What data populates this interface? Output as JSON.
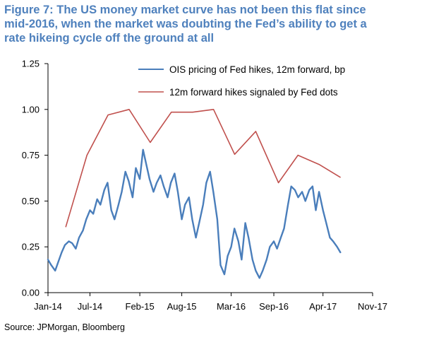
{
  "title_lines": [
    "Figure 7: The US money market curve has not been this flat since",
    "mid-2016, when the market was doubting the Fed’s ability to get a",
    "rate hikeing cycle off the ground at all"
  ],
  "source": "Source: JPMorgan, Bloomberg",
  "colors": {
    "title": "#4f81bd",
    "ois": "#4a7ebb",
    "dots": "#c0504d",
    "axis": "#000000"
  },
  "chart_data": {
    "type": "line",
    "title": "",
    "xlabel": "",
    "ylabel": "",
    "ylim": [
      0,
      1.25
    ],
    "yticks": [
      "0.00",
      "0.25",
      "0.50",
      "0.75",
      "1.00",
      "1.25"
    ],
    "xlim": [
      "2014-01-01",
      "2017-11-01"
    ],
    "xticks": [
      {
        "date": "2014-01-01",
        "label": "Jan-14"
      },
      {
        "date": "2014-07-01",
        "label": "Jul-14"
      },
      {
        "date": "2015-02-01",
        "label": "Feb-15"
      },
      {
        "date": "2015-08-01",
        "label": "Aug-15"
      },
      {
        "date": "2016-03-01",
        "label": "Mar-16"
      },
      {
        "date": "2016-09-01",
        "label": "Sep-16"
      },
      {
        "date": "2017-04-01",
        "label": "Apr-17"
      },
      {
        "date": "2017-11-01",
        "label": "Nov-17"
      }
    ],
    "grid": false,
    "legend_position": "top-right",
    "series": [
      {
        "name": "OIS pricing of Fed hikes, 12m forward, bp",
        "color": "#4a7ebb",
        "x": [
          "2014-01-01",
          "2014-01-15",
          "2014-02-01",
          "2014-02-15",
          "2014-03-01",
          "2014-03-15",
          "2014-04-01",
          "2014-04-15",
          "2014-05-01",
          "2014-05-15",
          "2014-06-01",
          "2014-06-15",
          "2014-07-01",
          "2014-07-15",
          "2014-08-01",
          "2014-08-15",
          "2014-09-01",
          "2014-09-15",
          "2014-10-01",
          "2014-10-15",
          "2014-11-01",
          "2014-11-15",
          "2014-12-01",
          "2014-12-15",
          "2015-01-01",
          "2015-01-15",
          "2015-02-01",
          "2015-02-15",
          "2015-03-01",
          "2015-03-15",
          "2015-04-01",
          "2015-04-15",
          "2015-05-01",
          "2015-05-15",
          "2015-06-01",
          "2015-06-15",
          "2015-07-01",
          "2015-07-15",
          "2015-08-01",
          "2015-08-15",
          "2015-09-01",
          "2015-09-15",
          "2015-10-01",
          "2015-10-15",
          "2015-11-01",
          "2015-11-15",
          "2015-12-01",
          "2015-12-15",
          "2016-01-01",
          "2016-01-15",
          "2016-02-01",
          "2016-02-15",
          "2016-03-01",
          "2016-03-15",
          "2016-04-01",
          "2016-04-15",
          "2016-05-01",
          "2016-05-15",
          "2016-06-01",
          "2016-06-15",
          "2016-07-01",
          "2016-07-15",
          "2016-08-01",
          "2016-08-15",
          "2016-09-01",
          "2016-09-15",
          "2016-10-01",
          "2016-10-15",
          "2016-11-01",
          "2016-11-15",
          "2016-12-01",
          "2016-12-15",
          "2017-01-01",
          "2017-01-15",
          "2017-02-01",
          "2017-02-15",
          "2017-03-01",
          "2017-03-15",
          "2017-04-01",
          "2017-04-15",
          "2017-05-01",
          "2017-05-15",
          "2017-06-01",
          "2017-06-15"
        ],
        "values": [
          0.18,
          0.15,
          0.12,
          0.17,
          0.22,
          0.26,
          0.28,
          0.27,
          0.24,
          0.3,
          0.34,
          0.4,
          0.45,
          0.43,
          0.51,
          0.48,
          0.56,
          0.6,
          0.45,
          0.4,
          0.48,
          0.55,
          0.66,
          0.61,
          0.52,
          0.68,
          0.62,
          0.78,
          0.7,
          0.62,
          0.55,
          0.6,
          0.64,
          0.58,
          0.52,
          0.6,
          0.65,
          0.55,
          0.4,
          0.48,
          0.52,
          0.4,
          0.3,
          0.38,
          0.48,
          0.6,
          0.66,
          0.55,
          0.4,
          0.15,
          0.1,
          0.2,
          0.25,
          0.35,
          0.28,
          0.18,
          0.38,
          0.3,
          0.18,
          0.12,
          0.08,
          0.12,
          0.18,
          0.25,
          0.28,
          0.24,
          0.3,
          0.35,
          0.48,
          0.58,
          0.56,
          0.52,
          0.55,
          0.5,
          0.56,
          0.58,
          0.45,
          0.55,
          0.45,
          0.38,
          0.3,
          0.28,
          0.25,
          0.22
        ]
      },
      {
        "name": "12m forward hikes signaled by Fed dots",
        "color": "#c0504d",
        "x": [
          "2014-03-19",
          "2014-06-18",
          "2014-09-17",
          "2014-12-17",
          "2015-03-18",
          "2015-06-17",
          "2015-09-17",
          "2015-12-16",
          "2016-03-16",
          "2016-06-15",
          "2016-09-21",
          "2016-12-14",
          "2017-03-15",
          "2017-06-14"
        ],
        "values": [
          0.36,
          0.75,
          0.97,
          1.0,
          0.82,
          0.985,
          0.985,
          1.0,
          0.755,
          0.88,
          0.6,
          0.75,
          0.7,
          0.63
        ]
      }
    ]
  }
}
